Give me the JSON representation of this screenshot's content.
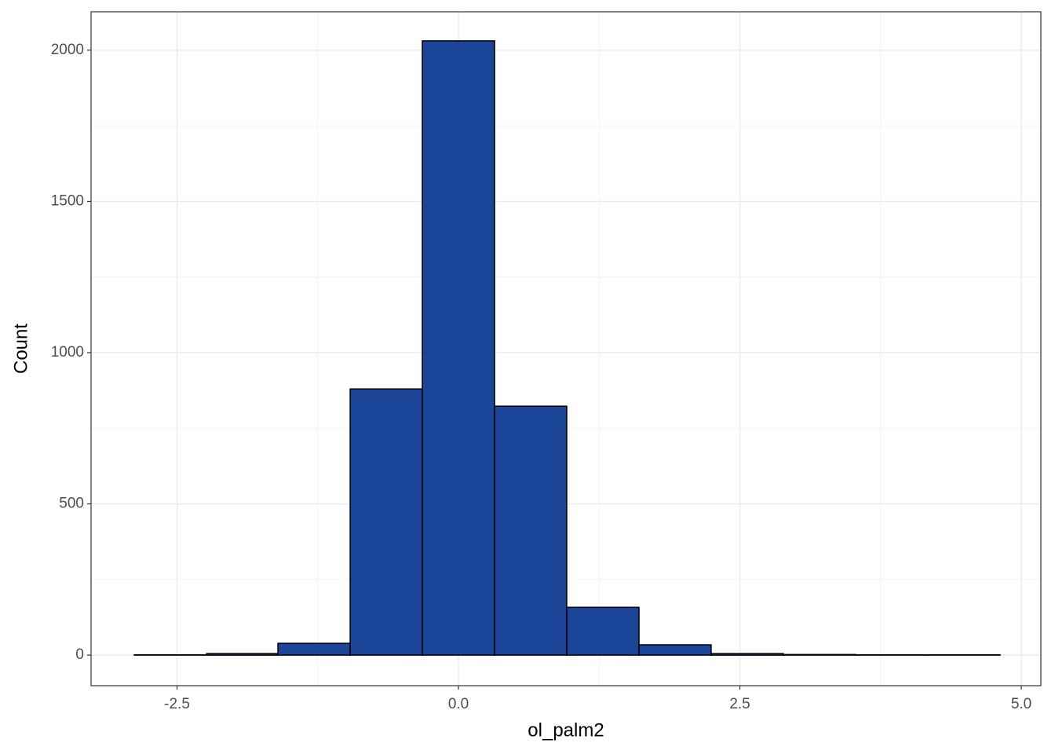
{
  "chart_data": {
    "type": "histogram",
    "x_label": "ol_palm2",
    "y_label": "Count",
    "bins": [
      -2.88,
      -2.238,
      -1.604,
      -0.962,
      -0.321,
      0.321,
      0.962,
      1.604,
      2.245,
      2.887,
      3.529,
      4.17,
      4.812
    ],
    "values": [
      1,
      5,
      39,
      880,
      2031,
      823,
      158,
      34,
      5,
      2,
      1,
      1
    ],
    "color": "#1a4599",
    "edge_color": "#000000",
    "xlim": [
      -3.264,
      5.174
    ],
    "ylim": [
      -101,
      2127
    ],
    "xticks": [
      -2.5,
      {
        "value": 0,
        "label": "0.0"
      },
      2.5,
      {
        "value": 5,
        "label": "5.0"
      }
    ],
    "yticks": [
      0,
      500,
      1000,
      1500,
      2000
    ],
    "x_minor_grid": [
      -1.25,
      1.25,
      3.75
    ],
    "y_minor_grid": [
      250,
      750,
      1250,
      1750
    ],
    "grid": true
  }
}
